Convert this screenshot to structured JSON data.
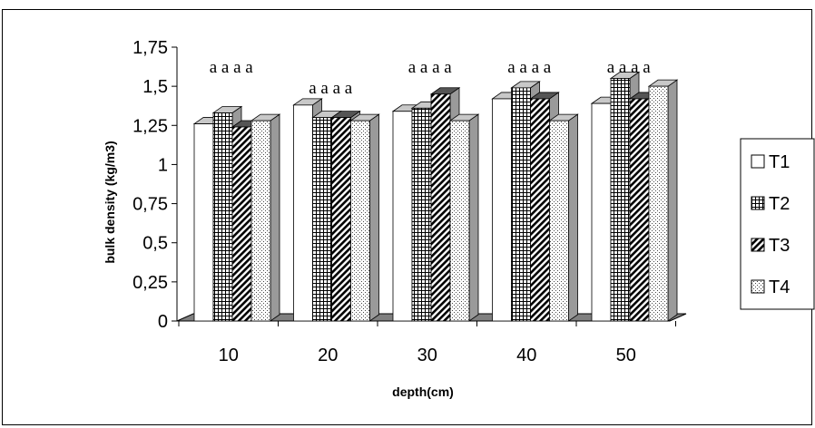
{
  "chart_data": {
    "type": "bar",
    "xlabel": "depth(cm)",
    "ylabel": "bulk density (kg/m3)",
    "categories": [
      "10",
      "20",
      "30",
      "40",
      "50"
    ],
    "ylim": [
      0,
      1.75
    ],
    "yticks": [
      "0",
      "0,25",
      "0,5",
      "0,75",
      "1",
      "1,25",
      "1,5",
      "1,75"
    ],
    "series": [
      {
        "name": "T1",
        "values": [
          1.26,
          1.38,
          1.34,
          1.42,
          1.39
        ],
        "pattern": "white"
      },
      {
        "name": "T2",
        "values": [
          1.33,
          1.3,
          1.36,
          1.49,
          1.55
        ],
        "pattern": "grid"
      },
      {
        "name": "T3",
        "values": [
          1.24,
          1.3,
          1.45,
          1.42,
          1.42
        ],
        "pattern": "diagonal"
      },
      {
        "name": "T4",
        "values": [
          1.28,
          1.28,
          1.28,
          1.28,
          1.5
        ],
        "pattern": "dots"
      }
    ],
    "annotations": [
      "a a a a",
      "a a a a",
      "a a a a",
      "a a a a",
      "a a a a"
    ],
    "legend_position": "right",
    "grid": false,
    "style": "3d-bars"
  }
}
